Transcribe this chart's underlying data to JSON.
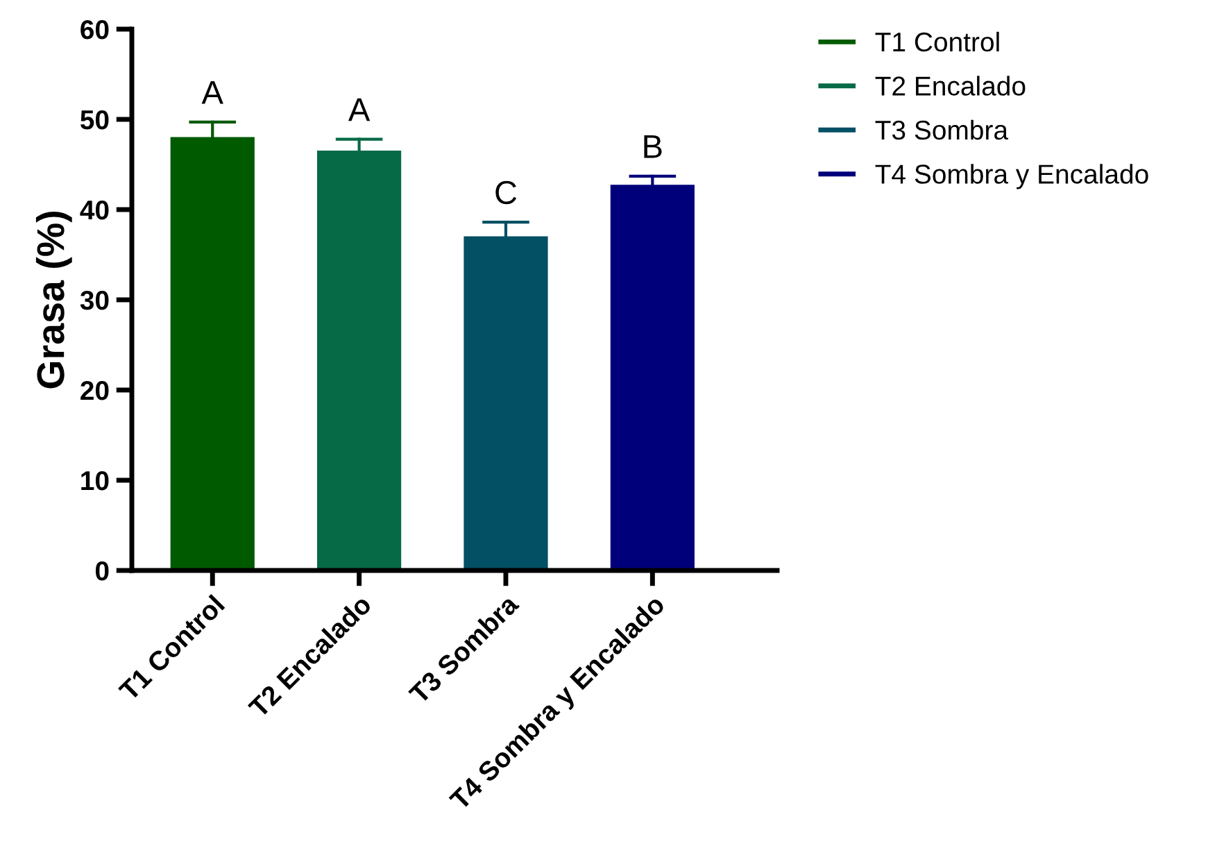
{
  "chart_data": {
    "type": "bar",
    "ylabel": "Grasa (%)",
    "categories": [
      "T1 Control",
      "T2 Encalado",
      "T3 Sombra",
      "T4 Sombra y Encalado"
    ],
    "series": [
      {
        "name": "T1 Control",
        "color": "#005a00",
        "values": [
          48.1,
          null,
          null,
          null
        ],
        "errors": [
          [
            48.1,
            49.7
          ],
          null,
          null,
          null
        ]
      },
      {
        "name": "T2 Encalado",
        "color": "#066a46",
        "values": [
          null,
          46.6,
          null,
          null
        ],
        "errors": [
          null,
          [
            46.6,
            47.8
          ],
          null,
          null
        ]
      },
      {
        "name": "T3 Sombra",
        "color": "#034f63",
        "values": [
          null,
          null,
          37.1,
          null
        ],
        "errors": [
          null,
          null,
          [
            37.1,
            38.6
          ],
          null
        ]
      },
      {
        "name": "T4 Sombra y Encalado",
        "color": "#00007b",
        "values": [
          null,
          null,
          null,
          42.8
        ],
        "errors": [
          null,
          null,
          null,
          [
            42.8,
            43.7
          ]
        ]
      }
    ],
    "ylim": [
      0,
      60
    ],
    "yticks": [
      0,
      10,
      20,
      30,
      40,
      50,
      60
    ],
    "grid": false,
    "legend": "top right",
    "annotations": [
      {
        "text": "A",
        "x": "T1 Control",
        "y": 49.7
      },
      {
        "text": "A",
        "x": "T2 Encalado",
        "y": 47.8
      },
      {
        "text": "C",
        "x": "T3 Sombra",
        "y": 38.6
      },
      {
        "text": "B",
        "x": "T4 Sombra y Encalado",
        "y": 43.7
      }
    ]
  }
}
